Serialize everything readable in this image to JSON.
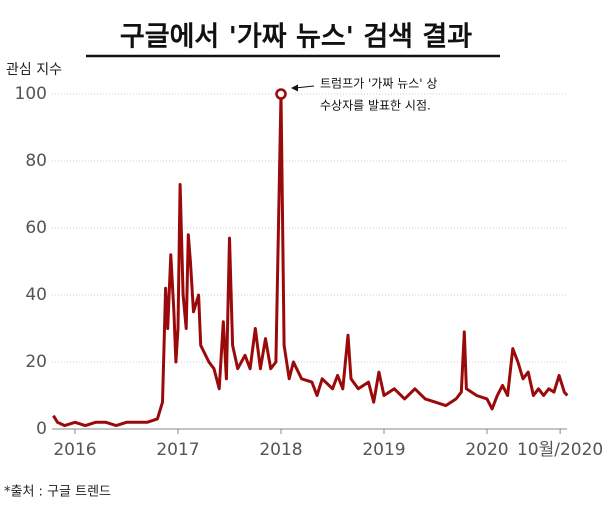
{
  "chart_data": {
    "type": "line",
    "title": "구글에서 '가짜 뉴스' 검색 결과",
    "y_label": "관심 지수",
    "source": "*출처 :  구글 트렌드",
    "annotation": [
      "트럼프가 '가짜 뉴스' 상",
      "수상자를 발표한 시점."
    ],
    "x": [
      2015.79,
      2015.83,
      2015.9,
      2016.0,
      2016.1,
      2016.2,
      2016.3,
      2016.4,
      2016.5,
      2016.6,
      2016.7,
      2016.8,
      2016.85,
      2016.88,
      2016.9,
      2016.93,
      2016.96,
      2016.98,
      2017.0,
      2017.02,
      2017.05,
      2017.08,
      2017.1,
      2017.12,
      2017.15,
      2017.2,
      2017.22,
      2017.3,
      2017.35,
      2017.4,
      2017.44,
      2017.47,
      2017.5,
      2017.53,
      2017.58,
      2017.65,
      2017.7,
      2017.75,
      2017.8,
      2017.85,
      2017.9,
      2017.95,
      2018.0,
      2018.03,
      2018.08,
      2018.12,
      2018.2,
      2018.3,
      2018.35,
      2018.4,
      2018.5,
      2018.55,
      2018.6,
      2018.65,
      2018.68,
      2018.75,
      2018.85,
      2018.9,
      2018.95,
      2019.0,
      2019.1,
      2019.2,
      2019.3,
      2019.4,
      2019.5,
      2019.6,
      2019.7,
      2019.75,
      2019.78,
      2019.8,
      2019.9,
      2020.0,
      2020.05,
      2020.1,
      2020.15,
      2020.2,
      2020.25,
      2020.3,
      2020.35,
      2020.4,
      2020.45,
      2020.5,
      2020.55,
      2020.6,
      2020.65,
      2020.7,
      2020.75,
      2020.78
    ],
    "series": [
      {
        "name": "가짜 뉴스",
        "color": "#9b0a0a",
        "values": [
          4,
          2,
          1,
          2,
          1,
          2,
          2,
          1,
          2,
          2,
          2,
          3,
          8,
          42,
          30,
          52,
          35,
          20,
          30,
          73,
          40,
          30,
          58,
          50,
          35,
          40,
          25,
          20,
          18,
          12,
          32,
          15,
          57,
          25,
          18,
          22,
          18,
          30,
          18,
          27,
          18,
          20,
          100,
          25,
          15,
          20,
          15,
          14,
          10,
          15,
          12,
          16,
          12,
          28,
          15,
          12,
          14,
          8,
          17,
          10,
          12,
          9,
          12,
          9,
          8,
          7,
          9,
          11,
          29,
          12,
          10,
          9,
          6,
          10,
          13,
          10,
          24,
          20,
          15,
          17,
          10,
          12,
          10,
          12,
          11,
          16,
          11,
          10
        ]
      }
    ],
    "highlight_index": 42,
    "xlim": [
      2015.75,
      2020.8
    ],
    "xticks": [
      2016,
      2017,
      2018,
      2019,
      2020,
      {
        "value": 2020.71,
        "label": "10월/2020"
      }
    ],
    "ylim": [
      0,
      100
    ],
    "yticks": [
      0,
      20,
      40,
      60,
      80,
      100
    ],
    "grid": true
  }
}
